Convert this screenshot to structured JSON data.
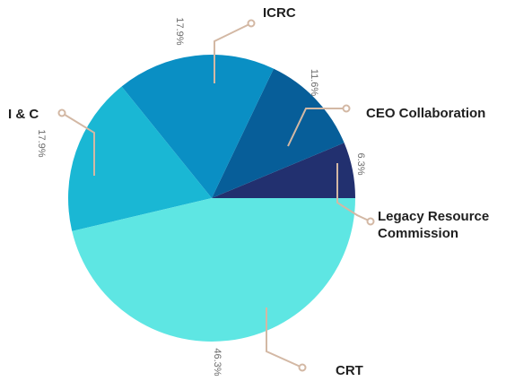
{
  "chart_data": {
    "type": "pie",
    "title": "",
    "categories": [
      "Legacy Resource Commission",
      "CEO Collaboration",
      "ICRC",
      "I & C",
      "CRT"
    ],
    "values": [
      6.3,
      11.6,
      17.9,
      17.9,
      46.3
    ],
    "value_labels": [
      "6.3%",
      "11.6%",
      "17.9%",
      "17.9%",
      "46.3%"
    ],
    "colors": [
      "#22306f",
      "#075e99",
      "#0a8fc4",
      "#1ab7d4",
      "#5ee6e3"
    ],
    "legend": "none"
  }
}
